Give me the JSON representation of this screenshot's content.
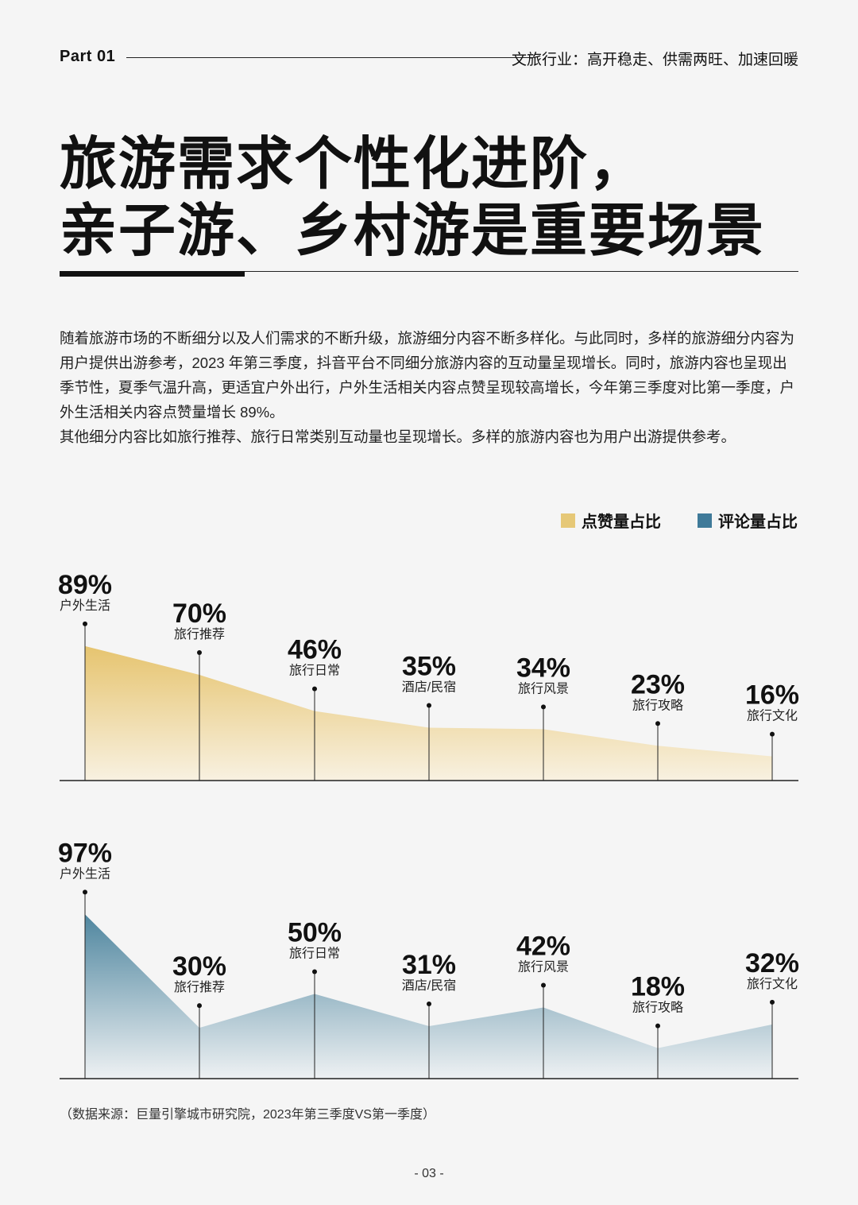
{
  "header": {
    "part": "Part 01",
    "subtitle": "文旅行业：高开稳走、供需两旺、加速回暖"
  },
  "title": {
    "line1": "旅游需求个性化进阶，",
    "line2": "亲子游、乡村游是重要场景"
  },
  "intro": {
    "p1": "随着旅游市场的不断细分以及人们需求的不断升级，旅游细分内容不断多样化。与此同时，多样的旅游细分内容为用户提供出游参考，2023 年第三季度，抖音平台不同细分旅游内容的互动量呈现增长。同时，旅游内容也呈现出季节性，夏季气温升高，更适宜户外出行，户外生活相关内容点赞呈现较高增长，今年第三季度对比第一季度，户外生活相关内容点赞量增长 89%。",
    "p2": "其他细分内容比如旅行推荐、旅行日常类别互动量也呈现增长。多样的旅游内容也为用户出游提供参考。"
  },
  "legend": [
    {
      "label": "点赞量占比",
      "color": "#e6c877"
    },
    {
      "label": "评论量占比",
      "color": "#3f7a99"
    }
  ],
  "chart_data": [
    {
      "type": "area",
      "categories": [
        "户外生活",
        "旅行推荐",
        "旅行日常",
        "酒店/民宿",
        "旅行风景",
        "旅行攻略",
        "旅行文化"
      ],
      "series": [
        {
          "name": "点赞量占比",
          "values": [
            89,
            70,
            46,
            35,
            34,
            23,
            16
          ],
          "labels": [
            "89%",
            "70%",
            "46%",
            "35%",
            "34%",
            "23%",
            "16%"
          ]
        }
      ],
      "ylim": [
        0,
        100
      ],
      "color_top": "#e6c46f",
      "color_bottom": "#f8f1e1"
    },
    {
      "type": "area",
      "categories": [
        "户外生活",
        "旅行推荐",
        "旅行日常",
        "酒店/民宿",
        "旅行风景",
        "旅行攻略",
        "旅行文化"
      ],
      "series": [
        {
          "name": "评论量占比",
          "values": [
            97,
            30,
            50,
            31,
            42,
            18,
            32
          ],
          "labels": [
            "97%",
            "30%",
            "50%",
            "31%",
            "42%",
            "18%",
            "32%"
          ]
        }
      ],
      "ylim": [
        0,
        100
      ],
      "color_top": "#4f869f",
      "color_bottom": "#eef1f3"
    }
  ],
  "source": "（数据来源：巨量引擎城市研究院，2023年第三季度VS第一季度）",
  "page_number": "- 03 -"
}
